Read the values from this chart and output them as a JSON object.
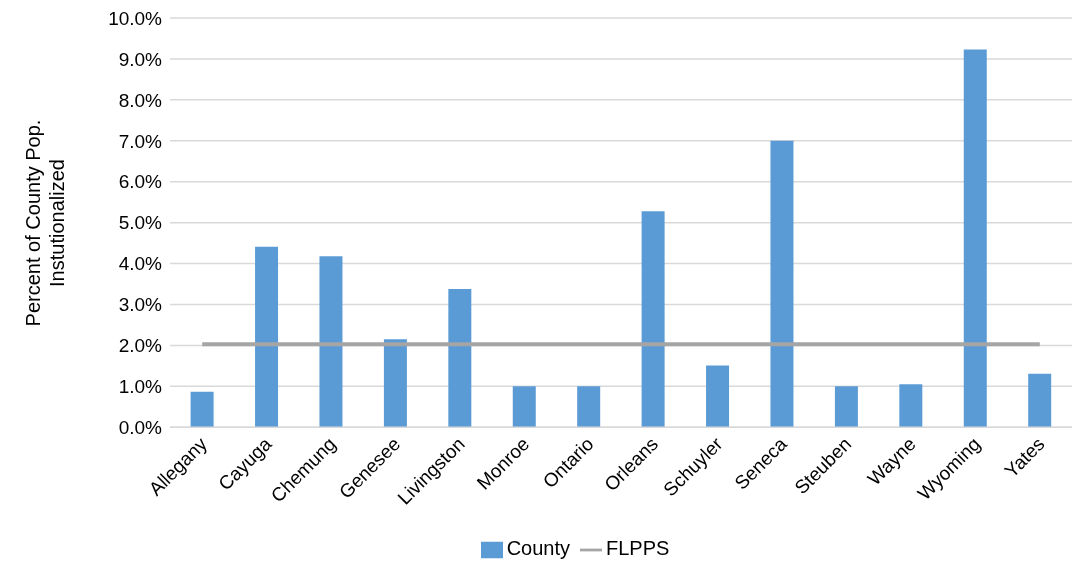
{
  "chart_data": {
    "type": "bar",
    "ylabel": "Percent of County Pop. Instutionalized",
    "categories": [
      "Allegany",
      "Cayuga",
      "Chemung",
      "Genesee",
      "Livingston",
      "Monroe",
      "Ontario",
      "Orleans",
      "Schuyler",
      "Seneca",
      "Steuben",
      "Wayne",
      "Wyoming",
      "Yates"
    ],
    "series": [
      {
        "name": "County",
        "color": "#5b9bd5",
        "values": [
          0.87,
          4.41,
          4.18,
          2.15,
          3.38,
          1.0,
          1.0,
          5.28,
          1.51,
          7.0,
          1.0,
          1.05,
          9.23,
          1.31
        ]
      },
      {
        "name": "FLPPS",
        "type": "line",
        "color": "#a5a5a5",
        "values": [
          2.03,
          2.03,
          2.03,
          2.03,
          2.03,
          2.03,
          2.03,
          2.03,
          2.03,
          2.03,
          2.03,
          2.03,
          2.03,
          2.03
        ]
      }
    ],
    "ylim": [
      0,
      10
    ],
    "yticks": [
      {
        "value": 0,
        "label": "0.0%"
      },
      {
        "value": 1,
        "label": "1.0%"
      },
      {
        "value": 2,
        "label": "2.0%"
      },
      {
        "value": 3,
        "label": "3.0%"
      },
      {
        "value": 4,
        "label": "4.0%"
      },
      {
        "value": 5,
        "label": "5.0%"
      },
      {
        "value": 6,
        "label": "6.0%"
      },
      {
        "value": 7,
        "label": "7.0%"
      },
      {
        "value": 8,
        "label": "8.0%"
      },
      {
        "value": 9,
        "label": "9.0%"
      },
      {
        "value": 10,
        "label": "10.0%"
      }
    ],
    "grid": "y",
    "legend": "bottom",
    "marker": "none"
  }
}
